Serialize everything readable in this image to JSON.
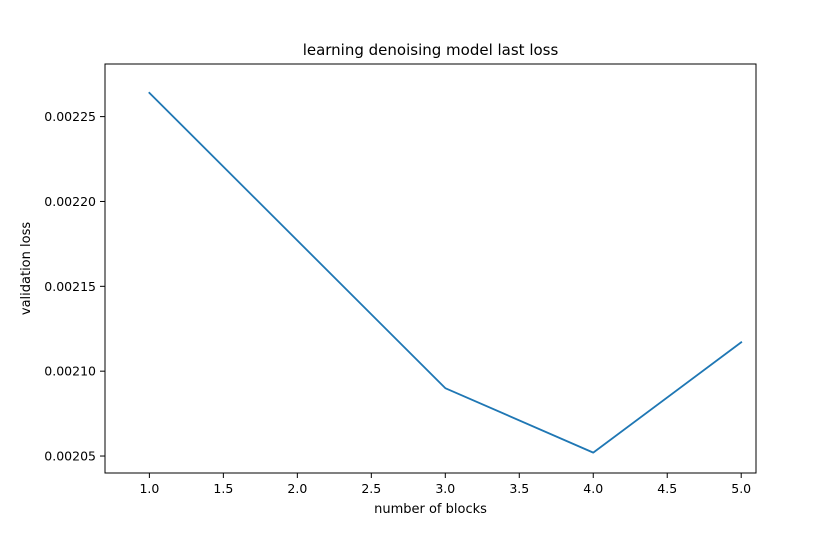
{
  "chart_data": {
    "type": "line",
    "title": "learning denoising model last loss",
    "xlabel": "number of blocks",
    "ylabel": "validation loss",
    "xlim": [
      0.7,
      5.1
    ],
    "ylim": [
      0.00204,
      0.002281
    ],
    "xticks": [
      1.0,
      1.5,
      2.0,
      2.5,
      3.0,
      3.5,
      4.0,
      4.5,
      5.0
    ],
    "xtick_labels": [
      "1.0",
      "1.5",
      "2.0",
      "2.5",
      "3.0",
      "3.5",
      "4.0",
      "4.5",
      "5.0"
    ],
    "yticks": [
      0.00205,
      0.0021,
      0.00215,
      0.0022,
      0.00225
    ],
    "ytick_labels": [
      "0.00205",
      "0.00210",
      "0.00215",
      "0.00220",
      "0.00225"
    ],
    "grid": false,
    "series": [
      {
        "color": "#1f77b4",
        "x": [
          1,
          3,
          4,
          5
        ],
        "y": [
          0.002264,
          0.00209,
          0.002052,
          0.002117
        ]
      }
    ]
  }
}
